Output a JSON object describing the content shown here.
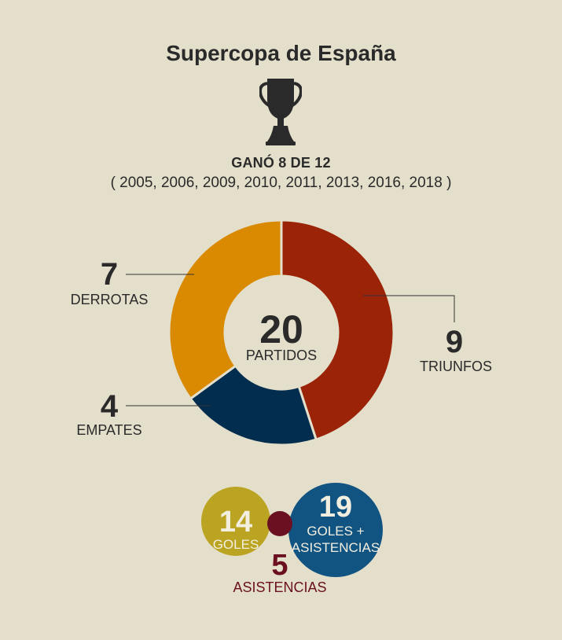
{
  "header": {
    "title": "Supercopa de España",
    "won_text": "GANÓ 8 DE 12",
    "years_text": "( 2005, 2006, 2009, 2010, 2011, 2013, 2016, 2018 )"
  },
  "icons": {
    "trophy": "trophy-icon"
  },
  "chart_data": [
    {
      "type": "pie",
      "variant": "donut",
      "center_value": "20",
      "center_label": "PARTIDOS",
      "slices": [
        {
          "label": "TRIUNFOS",
          "value": 9,
          "color": "#9a2308"
        },
        {
          "label": "EMPATES",
          "value": 4,
          "color": "#032d4f"
        },
        {
          "label": "DERROTAS",
          "value": 7,
          "color": "#d98a00"
        }
      ]
    },
    {
      "type": "scatter",
      "variant": "bubble",
      "items": [
        {
          "label": "GOLES",
          "value": 14,
          "color": "#bba422"
        },
        {
          "label": "ASISTENCIAS",
          "value": 5,
          "color": "#6b1020"
        },
        {
          "label": "GOLES + ASISTENCIAS",
          "label_lines": [
            "GOLES +",
            "ASISTENCIAS"
          ],
          "value": 19,
          "color": "#115381"
        }
      ]
    }
  ]
}
